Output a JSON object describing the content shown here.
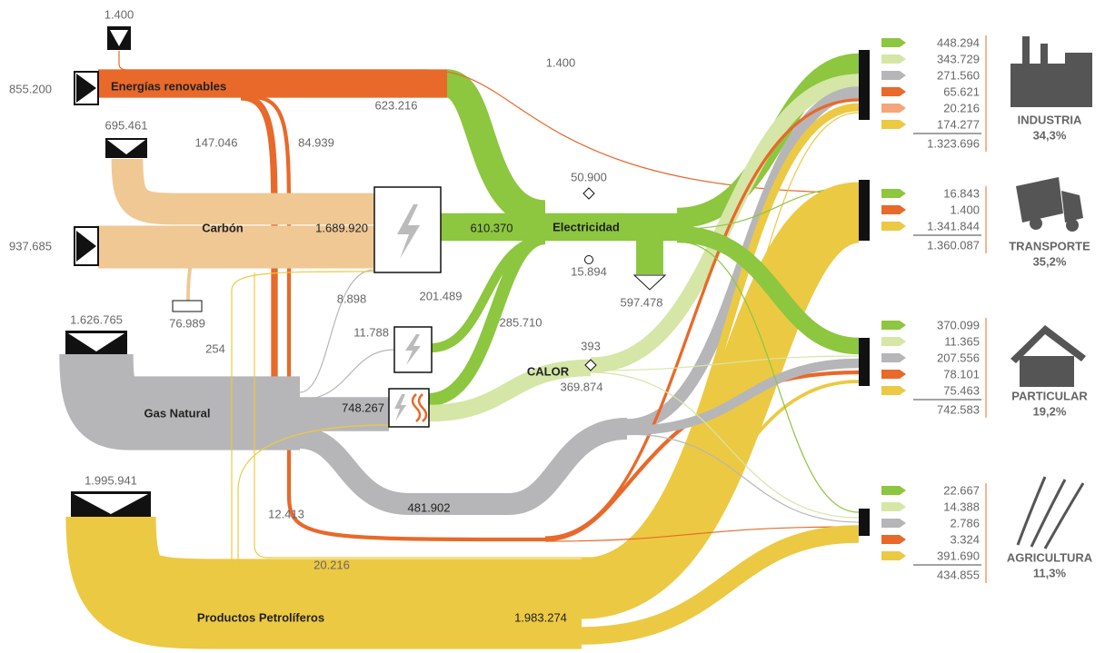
{
  "colors": {
    "electricidad": "#8dc63f",
    "calor": "#d5e6a6",
    "gas": "#b6b6b8",
    "renovables": "#e8692a",
    "carbon": "#efc894",
    "carbon_mix": "#f3a679",
    "petroleo": "#ecc942"
  },
  "inputs": {
    "renovables_extra": "1.400",
    "renovables": "855.200",
    "carbon_a": "695.461",
    "carbon_b": "937.685",
    "gas": "1.626.765",
    "petroleo": "1.995.941"
  },
  "nodes": {
    "renovables": "Energías renovables",
    "carbon": "Carbón",
    "gas": "Gas Natural",
    "petroleo": "Productos Petrolíferos",
    "electricidad": "Electricidad",
    "calor": "CALOR"
  },
  "flows": {
    "ren_elec": "623.216",
    "ren_trans": "1.400",
    "ren_calor": "147.046",
    "ren_part": "84.939",
    "carbon_total": "1.689.920",
    "carbon_loss": "76.989",
    "gas_carbon_plant": "8.898",
    "petro_carbon_plant": "254",
    "gas_plant": "11.788",
    "cogen_in": "748.267",
    "gas_direct": "481.902",
    "petro_cogen": "12.413",
    "petro_ind": "20.216",
    "petro_direct": "1.983.274",
    "carbon_elec": "610.370",
    "plant_elec": "201.489",
    "cogen_elec": "285.710",
    "elec_gain": "50.900",
    "elec_loss_a": "15.894",
    "elec_loss_b": "597.478",
    "calor_gain": "393",
    "calor": "369.874"
  },
  "sectors": [
    {
      "name": "INDUSTRIA",
      "share": "34,3%",
      "total": "1.323.696",
      "rows": [
        {
          "value": "448.294",
          "color": "#8dc63f"
        },
        {
          "value": "343.729",
          "color": "#d5e6a6"
        },
        {
          "value": "271.560",
          "color": "#b6b6b8"
        },
        {
          "value": "65.621",
          "color": "#e8692a"
        },
        {
          "value": "20.216",
          "color": "#f3a679"
        },
        {
          "value": "174.277",
          "color": "#ecc942"
        }
      ]
    },
    {
      "name": "TRANSPORTE",
      "share": "35,2%",
      "total": "1.360.087",
      "rows": [
        {
          "value": "16.843",
          "color": "#8dc63f"
        },
        {
          "value": "1.400",
          "color": "#e8692a"
        },
        {
          "value": "1.341.844",
          "color": "#ecc942"
        }
      ]
    },
    {
      "name": "PARTICULAR",
      "share": "19,2%",
      "total": "742.583",
      "rows": [
        {
          "value": "370.099",
          "color": "#8dc63f"
        },
        {
          "value": "11.365",
          "color": "#d5e6a6"
        },
        {
          "value": "207.556",
          "color": "#b6b6b8"
        },
        {
          "value": "78.101",
          "color": "#e8692a"
        },
        {
          "value": "75.463",
          "color": "#ecc942"
        }
      ]
    },
    {
      "name": "AGRICULTURA",
      "share": "11,3%",
      "total": "434.855",
      "rows": [
        {
          "value": "22.667",
          "color": "#8dc63f"
        },
        {
          "value": "14.388",
          "color": "#d5e6a6"
        },
        {
          "value": "2.786",
          "color": "#b6b6b8"
        },
        {
          "value": "3.324",
          "color": "#e8692a"
        },
        {
          "value": "391.690",
          "color": "#ecc942"
        }
      ]
    }
  ]
}
